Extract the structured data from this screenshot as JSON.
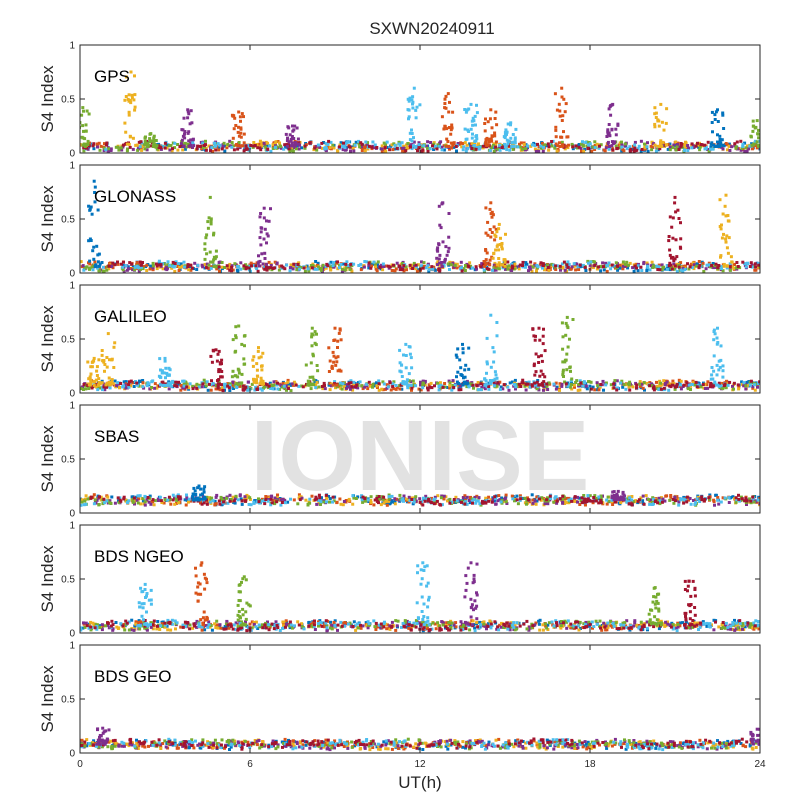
{
  "watermark": "IONISE",
  "chart_data": {
    "type": "scatter",
    "title": "SXWN20240911",
    "xlabel": "UT(h)",
    "ylabel": "S4 Index",
    "xlim": [
      0,
      24
    ],
    "ylim": [
      0,
      1
    ],
    "xticks": [
      "0",
      "6",
      "12",
      "18",
      "24"
    ],
    "yticks": [
      "0",
      "0.5",
      "1"
    ],
    "grid": false,
    "legend": "none",
    "series_colors": [
      "#0072BD",
      "#D95319",
      "#EDB120",
      "#7E2F8E",
      "#77AC30",
      "#4DBEEE",
      "#A2142F"
    ],
    "panels": [
      {
        "label": "GPS",
        "background": 0.06,
        "spikes": [
          {
            "x": 0.1,
            "peak": 0.42,
            "series": 4
          },
          {
            "x": 1.8,
            "peak": 0.75,
            "series": 2
          },
          {
            "x": 2.5,
            "peak": 0.18,
            "series": 4
          },
          {
            "x": 3.8,
            "peak": 0.4,
            "series": 3
          },
          {
            "x": 5.6,
            "peak": 0.38,
            "series": 1
          },
          {
            "x": 7.5,
            "peak": 0.25,
            "series": 3
          },
          {
            "x": 11.8,
            "peak": 0.6,
            "series": 5
          },
          {
            "x": 13.0,
            "peak": 0.55,
            "series": 1
          },
          {
            "x": 13.8,
            "peak": 0.45,
            "series": 5
          },
          {
            "x": 14.5,
            "peak": 0.4,
            "series": 1
          },
          {
            "x": 15.2,
            "peak": 0.28,
            "series": 5
          },
          {
            "x": 17.0,
            "peak": 0.6,
            "series": 1
          },
          {
            "x": 18.8,
            "peak": 0.45,
            "series": 3
          },
          {
            "x": 20.5,
            "peak": 0.45,
            "series": 2
          },
          {
            "x": 22.5,
            "peak": 0.4,
            "series": 0
          },
          {
            "x": 23.9,
            "peak": 0.3,
            "series": 4
          }
        ]
      },
      {
        "label": "GLONASS",
        "background": 0.06,
        "spikes": [
          {
            "x": 0.5,
            "peak": 0.85,
            "series": 0
          },
          {
            "x": 4.6,
            "peak": 0.7,
            "series": 4
          },
          {
            "x": 6.5,
            "peak": 0.6,
            "series": 3
          },
          {
            "x": 12.8,
            "peak": 0.65,
            "series": 3
          },
          {
            "x": 14.5,
            "peak": 0.65,
            "series": 1
          },
          {
            "x": 14.8,
            "peak": 0.45,
            "series": 2
          },
          {
            "x": 21.0,
            "peak": 0.7,
            "series": 6
          },
          {
            "x": 22.8,
            "peak": 0.72,
            "series": 2
          }
        ]
      },
      {
        "label": "GALILEO",
        "background": 0.07,
        "spikes": [
          {
            "x": 0.5,
            "peak": 0.32,
            "series": 2
          },
          {
            "x": 1.0,
            "peak": 0.55,
            "series": 2
          },
          {
            "x": 3.0,
            "peak": 0.32,
            "series": 5
          },
          {
            "x": 4.8,
            "peak": 0.4,
            "series": 6
          },
          {
            "x": 5.6,
            "peak": 0.62,
            "series": 4
          },
          {
            "x": 6.3,
            "peak": 0.42,
            "series": 2
          },
          {
            "x": 8.2,
            "peak": 0.6,
            "series": 4
          },
          {
            "x": 9.0,
            "peak": 0.6,
            "series": 1
          },
          {
            "x": 11.5,
            "peak": 0.45,
            "series": 5
          },
          {
            "x": 13.5,
            "peak": 0.45,
            "series": 0
          },
          {
            "x": 14.5,
            "peak": 0.72,
            "series": 5
          },
          {
            "x": 16.2,
            "peak": 0.6,
            "series": 6
          },
          {
            "x": 17.2,
            "peak": 0.7,
            "series": 4
          },
          {
            "x": 22.5,
            "peak": 0.6,
            "series": 5
          }
        ]
      },
      {
        "label": "SBAS",
        "background": 0.12,
        "spikes": [
          {
            "x": 4.2,
            "peak": 0.25,
            "series": 0
          },
          {
            "x": 19.0,
            "peak": 0.2,
            "series": 3
          }
        ]
      },
      {
        "label": "BDS NGEO",
        "background": 0.07,
        "spikes": [
          {
            "x": 2.3,
            "peak": 0.45,
            "series": 5
          },
          {
            "x": 4.3,
            "peak": 0.65,
            "series": 1
          },
          {
            "x": 5.8,
            "peak": 0.52,
            "series": 4
          },
          {
            "x": 12.1,
            "peak": 0.65,
            "series": 5
          },
          {
            "x": 13.8,
            "peak": 0.65,
            "series": 3
          },
          {
            "x": 20.3,
            "peak": 0.42,
            "series": 4
          },
          {
            "x": 21.5,
            "peak": 0.48,
            "series": 6
          }
        ]
      },
      {
        "label": "BDS GEO",
        "background": 0.08,
        "spikes": [
          {
            "x": 0.8,
            "peak": 0.23,
            "series": 3
          },
          {
            "x": 23.9,
            "peak": 0.22,
            "series": 3
          }
        ]
      }
    ]
  }
}
